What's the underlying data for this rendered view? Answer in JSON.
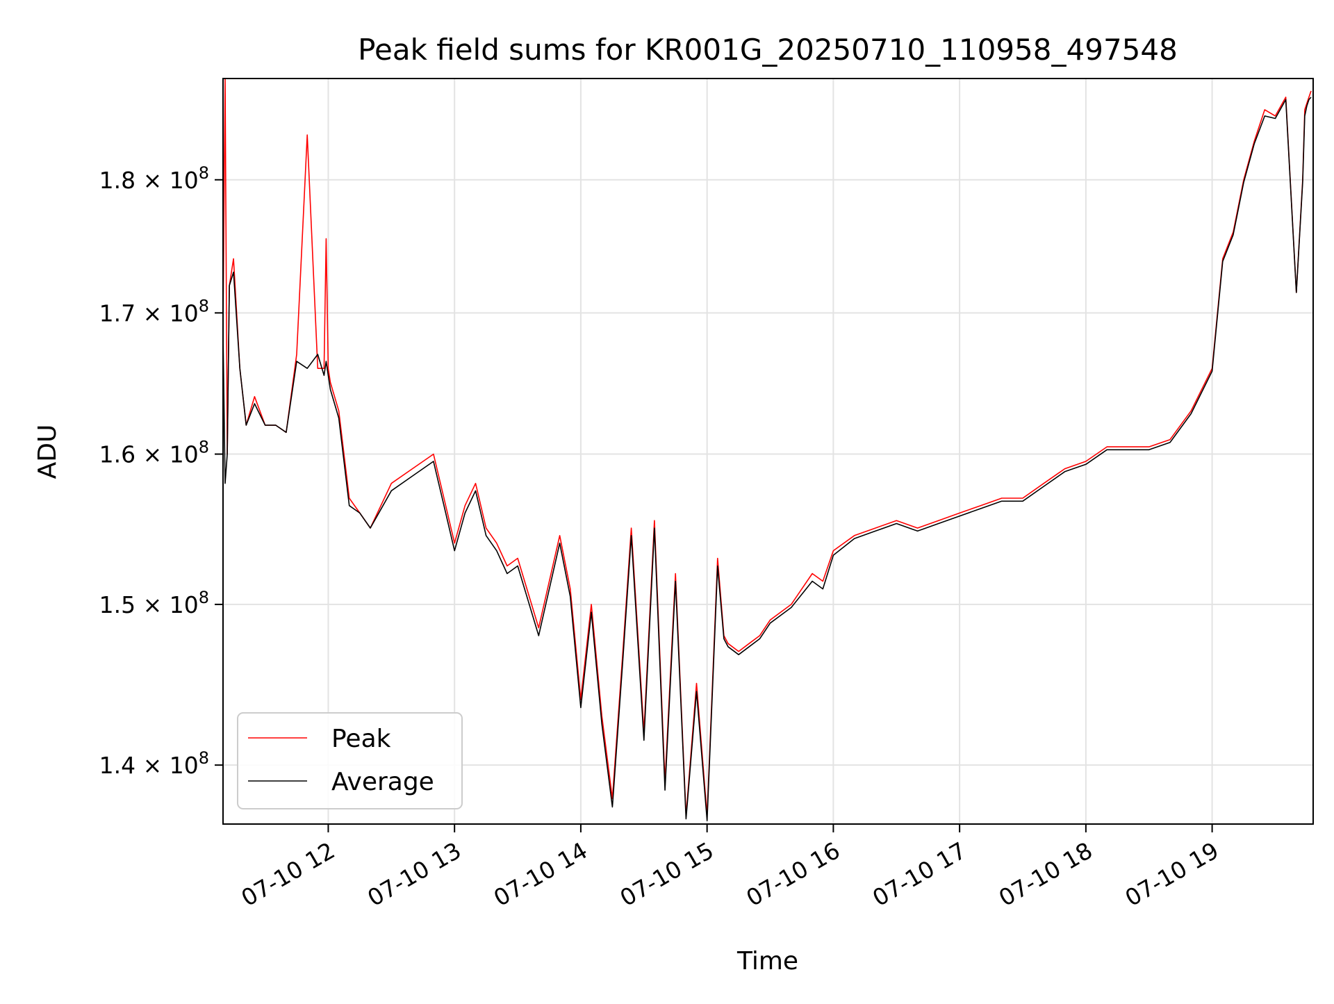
{
  "chart_data": {
    "type": "line",
    "title": "Peak field sums for KR001G_20250710_110958_497548",
    "xlabel": "Time",
    "ylabel": "ADU",
    "y_scale": "log",
    "x_ticks": [
      "07-10 12",
      "07-10 13",
      "07-10 14",
      "07-10 15",
      "07-10 16",
      "07-10 17",
      "07-10 18",
      "07-10 19"
    ],
    "y_ticks": [
      {
        "value": 140000000,
        "mantissa": "1.4",
        "exponent": "8"
      },
      {
        "value": 150000000,
        "mantissa": "1.5",
        "exponent": "8"
      },
      {
        "value": 160000000,
        "mantissa": "1.6",
        "exponent": "8"
      },
      {
        "value": 170000000,
        "mantissa": "1.7",
        "exponent": "8"
      },
      {
        "value": 180000000,
        "mantissa": "1.8",
        "exponent": "8"
      }
    ],
    "xlim": [
      "2025-07-10 11:10",
      "2025-07-10 19:48"
    ],
    "ylim": [
      136500000,
      188000000
    ],
    "grid": true,
    "legend_position": "lower-left",
    "series": [
      {
        "name": "Peak",
        "color": "#ff0000",
        "x": [
          "11:10",
          "11:11",
          "11:12",
          "11:13",
          "11:15",
          "11:18",
          "11:21",
          "11:25",
          "11:30",
          "11:35",
          "11:40",
          "11:45",
          "11:50",
          "11:55",
          "11:58",
          "11:59",
          "12:00",
          "12:01",
          "12:05",
          "12:10",
          "12:15",
          "12:20",
          "12:30",
          "12:40",
          "12:50",
          "12:55",
          "13:00",
          "13:05",
          "13:10",
          "13:15",
          "13:20",
          "13:25",
          "13:30",
          "13:40",
          "13:50",
          "13:55",
          "14:00",
          "14:05",
          "14:10",
          "14:15",
          "14:20",
          "14:24",
          "14:30",
          "14:35",
          "14:40",
          "14:45",
          "14:50",
          "14:55",
          "15:00",
          "15:05",
          "15:08",
          "15:10",
          "15:15",
          "15:20",
          "15:25",
          "15:30",
          "15:40",
          "15:50",
          "15:55",
          "16:00",
          "16:10",
          "16:20",
          "16:30",
          "16:40",
          "16:50",
          "17:00",
          "17:10",
          "17:20",
          "17:30",
          "17:40",
          "17:50",
          "18:00",
          "18:10",
          "18:20",
          "18:30",
          "18:40",
          "18:50",
          "19:00",
          "19:05",
          "19:10",
          "19:15",
          "19:20",
          "19:25",
          "19:30",
          "19:35",
          "19:40",
          "19:43",
          "19:44",
          "19:45",
          "19:46",
          "19:47"
        ],
        "y": [
          169000000,
          188000000,
          160000000,
          172000000,
          174000000,
          166000000,
          162000000,
          164000000,
          162000000,
          162000000,
          161500000,
          167000000,
          183500000,
          166000000,
          166000000,
          175500000,
          166000000,
          165000000,
          163000000,
          157000000,
          156000000,
          155000000,
          158000000,
          159000000,
          160000000,
          157000000,
          154000000,
          156500000,
          158000000,
          155000000,
          154000000,
          152500000,
          153000000,
          148500000,
          154500000,
          151000000,
          144000000,
          150000000,
          143000000,
          138000000,
          147000000,
          155000000,
          142000000,
          155500000,
          139000000,
          152000000,
          137000000,
          145000000,
          137000000,
          153000000,
          148000000,
          147500000,
          147000000,
          147500000,
          148000000,
          149000000,
          150000000,
          152000000,
          151500000,
          153500000,
          154500000,
          155000000,
          155500000,
          155000000,
          155500000,
          156000000,
          156500000,
          157000000,
          157000000,
          158000000,
          159000000,
          159500000,
          160500000,
          160500000,
          160500000,
          161000000,
          163000000,
          166000000,
          174000000,
          176000000,
          180000000,
          183000000,
          185500000,
          185000000,
          186500000,
          171500000,
          180000000,
          185500000,
          186000000,
          186500000,
          187000000
        ]
      },
      {
        "name": "Average",
        "color": "#000000",
        "x": [
          "11:10",
          "11:11",
          "11:12",
          "11:13",
          "11:15",
          "11:18",
          "11:21",
          "11:25",
          "11:30",
          "11:35",
          "11:40",
          "11:45",
          "11:50",
          "11:55",
          "11:58",
          "11:59",
          "12:00",
          "12:01",
          "12:05",
          "12:10",
          "12:15",
          "12:20",
          "12:30",
          "12:40",
          "12:50",
          "12:55",
          "13:00",
          "13:05",
          "13:10",
          "13:15",
          "13:20",
          "13:25",
          "13:30",
          "13:40",
          "13:50",
          "13:55",
          "14:00",
          "14:05",
          "14:10",
          "14:15",
          "14:20",
          "14:24",
          "14:30",
          "14:35",
          "14:40",
          "14:45",
          "14:50",
          "14:55",
          "15:00",
          "15:05",
          "15:08",
          "15:10",
          "15:15",
          "15:20",
          "15:25",
          "15:30",
          "15:40",
          "15:50",
          "15:55",
          "16:00",
          "16:10",
          "16:20",
          "16:30",
          "16:40",
          "16:50",
          "17:00",
          "17:10",
          "17:20",
          "17:30",
          "17:40",
          "17:50",
          "18:00",
          "18:10",
          "18:20",
          "18:30",
          "18:40",
          "18:50",
          "19:00",
          "19:05",
          "19:10",
          "19:15",
          "19:20",
          "19:25",
          "19:30",
          "19:35",
          "19:40",
          "19:43",
          "19:44",
          "19:45",
          "19:46",
          "19:47"
        ],
        "y": [
          168500000,
          158000000,
          160000000,
          172000000,
          173000000,
          166000000,
          162000000,
          163500000,
          162000000,
          162000000,
          161500000,
          166500000,
          166000000,
          167000000,
          165500000,
          166500000,
          165500000,
          164500000,
          162500000,
          156500000,
          156000000,
          155000000,
          157500000,
          158500000,
          159500000,
          156500000,
          153500000,
          156000000,
          157500000,
          154500000,
          153500000,
          152000000,
          152500000,
          148000000,
          154000000,
          150500000,
          143500000,
          149500000,
          142500000,
          137500000,
          146500000,
          154500000,
          141500000,
          155000000,
          138500000,
          151500000,
          136800000,
          144500000,
          136700000,
          152500000,
          147800000,
          147300000,
          146800000,
          147300000,
          147800000,
          148800000,
          149800000,
          151500000,
          151000000,
          153200000,
          154300000,
          154800000,
          155300000,
          154800000,
          155300000,
          155800000,
          156300000,
          156800000,
          156800000,
          157800000,
          158800000,
          159300000,
          160300000,
          160300000,
          160300000,
          160800000,
          162800000,
          165800000,
          173800000,
          175800000,
          179800000,
          182800000,
          185000000,
          184800000,
          186300000,
          171500000,
          179800000,
          185000000,
          185800000,
          186300000,
          186500000
        ]
      }
    ]
  }
}
